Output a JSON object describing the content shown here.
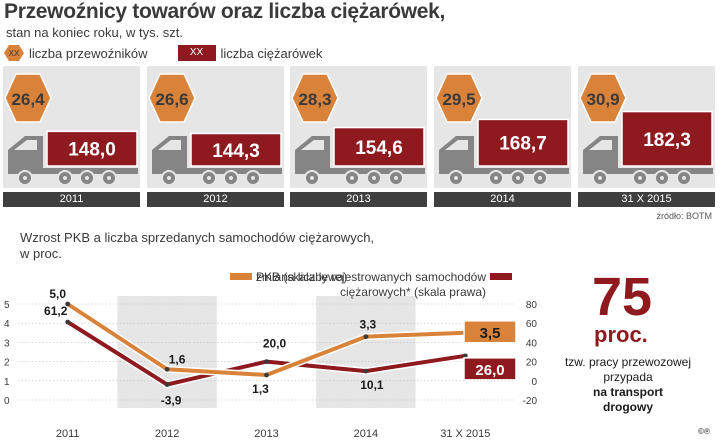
{
  "header": {
    "title": "Przewoźnicy towarów oraz liczba ciężarówek,",
    "subtitle": "stan na koniec roku, w tys. szt."
  },
  "legend_top": {
    "hex_placeholder": "XX",
    "carriers_label": "liczba przewoźników",
    "truck_placeholder": "XX",
    "trucks_label": "liczba ciężarówek"
  },
  "colors": {
    "orange": "#d9823a",
    "darkred": "#8e1a1f",
    "panel": "#e6e6e6",
    "truck": "#858585",
    "yearbar": "#3f3f3f"
  },
  "source": "źródło: BOTM",
  "chart_data": [
    {
      "type": "table",
      "title": "Przewoźnicy towarów oraz liczba ciężarówek,",
      "subtitle": "stan na koniec roku, w tys. szt.",
      "categories": [
        "2011",
        "2012",
        "2013",
        "2014",
        "31 X 2015"
      ],
      "series": [
        {
          "name": "liczba przewoźników",
          "values": [
            "26,4",
            "26,6",
            "28,3",
            "29,5",
            "30,9"
          ]
        },
        {
          "name": "liczba ciężarówek",
          "values": [
            "148,0",
            "144,3",
            "154,6",
            "168,7",
            "182,3"
          ]
        }
      ]
    },
    {
      "type": "line",
      "title": "Wzrost PKB a liczba sprzedanych samochodów ciężarowych,",
      "subtitle": "w proc.",
      "categories": [
        "2011",
        "2012",
        "2013",
        "2014",
        "31 X 2015"
      ],
      "y_left": {
        "min": 0,
        "max": 5,
        "ticks": [
          "0",
          "1",
          "2",
          "3",
          "4",
          "5"
        ]
      },
      "y_right": {
        "min": -20,
        "max": 80,
        "ticks": [
          "-20",
          "0",
          "20",
          "40",
          "60",
          "80"
        ]
      },
      "series": [
        {
          "name": "PKB (skala lewa)",
          "axis": "left",
          "values": [
            5.0,
            1.6,
            1.3,
            3.3,
            3.5
          ],
          "labels": [
            "5,0",
            "1,6",
            "1,3",
            "3,3",
            "3,5"
          ]
        },
        {
          "name": "zmiana liczby rejestrowanych samochodów ciężarowych* (skala prawa)",
          "axis": "right",
          "values": [
            61.2,
            -3.9,
            20.0,
            10.1,
            26.0
          ],
          "labels": [
            "61,2",
            "-3,9",
            "20,0",
            "10,1",
            "26,0"
          ]
        }
      ],
      "legend": {
        "gdp": "PKB (skala lewa)",
        "reg_line1": "zmiana liczby rejestrowanych samochodów",
        "reg_line2": "ciężarowych* (skala prawa)"
      }
    }
  ],
  "chart_text": {
    "title_line1": "Wzrost PKB a liczba sprzedanych samochodów ciężarowych,",
    "title_line2": "w proc."
  },
  "callout": {
    "number": "75",
    "unit": "proc.",
    "line1": "tzw. pracy przewozowej",
    "line2": "przypada",
    "line3": "na transport",
    "line4": "drogowy"
  },
  "copyright": "©℗"
}
